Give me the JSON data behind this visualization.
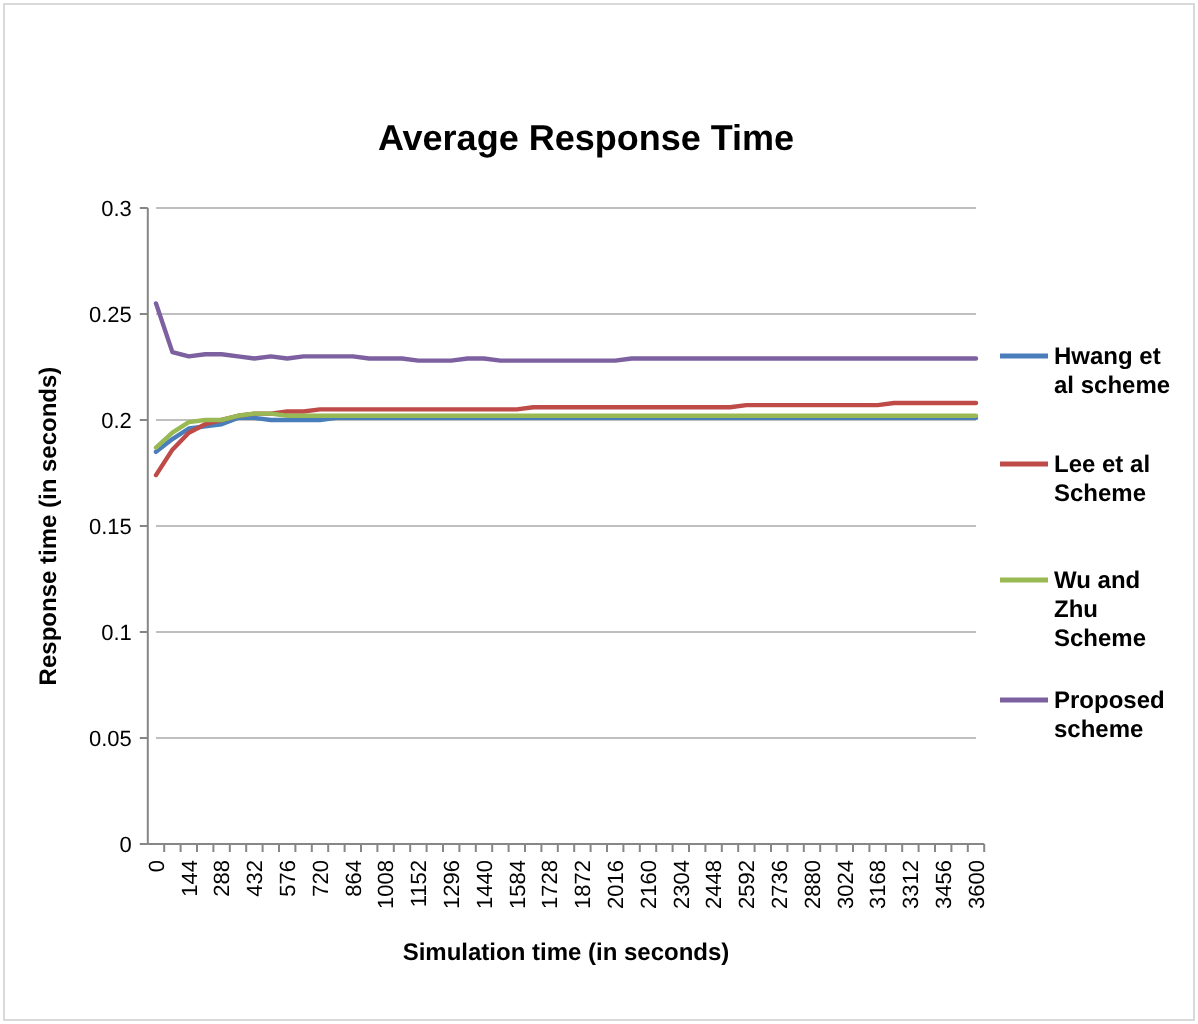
{
  "chart_data": {
    "type": "line",
    "title": "Average Response Time",
    "xlabel": "Simulation time (in seconds)",
    "ylabel": "Response time (in seconds)",
    "categories": [
      "0",
      null,
      "144",
      null,
      "288",
      null,
      "432",
      null,
      "576",
      null,
      "720",
      null,
      "864",
      null,
      "1008",
      null,
      "1152",
      null,
      "1296",
      null,
      "1440",
      null,
      "1584",
      null,
      "1728",
      null,
      "1872",
      null,
      "2016",
      null,
      "2160",
      null,
      "2304",
      null,
      "2448",
      null,
      "2592",
      null,
      "2736",
      null,
      "2880",
      null,
      "3024",
      null,
      "3168",
      null,
      "3312",
      null,
      "3456",
      null,
      "3600"
    ],
    "ylim": [
      0,
      0.3
    ],
    "yticks": [
      0,
      0.05,
      0.1,
      0.15,
      0.2,
      0.25,
      0.3
    ],
    "grid": "y",
    "legend": "right",
    "marker": "none",
    "line_style": "solid",
    "series": [
      {
        "name": "Hwang et al scheme",
        "color": "#4a7ebb",
        "values": [
          0.185,
          0.191,
          0.196,
          0.197,
          0.198,
          0.201,
          0.201,
          0.2,
          0.2,
          0.2,
          0.2,
          0.201,
          0.201,
          0.201,
          0.201,
          0.201,
          0.201,
          0.201,
          0.201,
          0.201,
          0.201,
          0.201,
          0.201,
          0.201,
          0.201,
          0.201,
          0.201,
          0.201,
          0.201,
          0.201,
          0.201,
          0.201,
          0.201,
          0.201,
          0.201,
          0.201,
          0.201,
          0.201,
          0.201,
          0.201,
          0.201,
          0.201,
          0.201,
          0.201,
          0.201,
          0.201,
          0.201,
          0.201,
          0.201,
          0.201,
          0.201
        ]
      },
      {
        "name": "Lee et al Scheme",
        "color": "#be4b48",
        "values": [
          0.174,
          0.186,
          0.194,
          0.198,
          0.2,
          0.202,
          0.203,
          0.203,
          0.204,
          0.204,
          0.205,
          0.205,
          0.205,
          0.205,
          0.205,
          0.205,
          0.205,
          0.205,
          0.205,
          0.205,
          0.205,
          0.205,
          0.205,
          0.206,
          0.206,
          0.206,
          0.206,
          0.206,
          0.206,
          0.206,
          0.206,
          0.206,
          0.206,
          0.206,
          0.206,
          0.206,
          0.207,
          0.207,
          0.207,
          0.207,
          0.207,
          0.207,
          0.207,
          0.207,
          0.207,
          0.208,
          0.208,
          0.208,
          0.208,
          0.208,
          0.208
        ]
      },
      {
        "name": "Wu and Zhu Scheme",
        "color": "#98b954",
        "values": [
          0.187,
          0.194,
          0.199,
          0.2,
          0.2,
          0.202,
          0.203,
          0.203,
          0.202,
          0.202,
          0.202,
          0.202,
          0.202,
          0.202,
          0.202,
          0.202,
          0.202,
          0.202,
          0.202,
          0.202,
          0.202,
          0.202,
          0.202,
          0.202,
          0.202,
          0.202,
          0.202,
          0.202,
          0.202,
          0.202,
          0.202,
          0.202,
          0.202,
          0.202,
          0.202,
          0.202,
          0.202,
          0.202,
          0.202,
          0.202,
          0.202,
          0.202,
          0.202,
          0.202,
          0.202,
          0.202,
          0.202,
          0.202,
          0.202,
          0.202,
          0.202
        ]
      },
      {
        "name": "Proposed scheme",
        "color": "#7d60a0",
        "values": [
          0.255,
          0.232,
          0.23,
          0.231,
          0.231,
          0.23,
          0.229,
          0.23,
          0.229,
          0.23,
          0.23,
          0.23,
          0.23,
          0.229,
          0.229,
          0.229,
          0.228,
          0.228,
          0.228,
          0.229,
          0.229,
          0.228,
          0.228,
          0.228,
          0.228,
          0.228,
          0.228,
          0.228,
          0.228,
          0.229,
          0.229,
          0.229,
          0.229,
          0.229,
          0.229,
          0.229,
          0.229,
          0.229,
          0.229,
          0.229,
          0.229,
          0.229,
          0.229,
          0.229,
          0.229,
          0.229,
          0.229,
          0.229,
          0.229,
          0.229,
          0.229
        ]
      }
    ]
  }
}
